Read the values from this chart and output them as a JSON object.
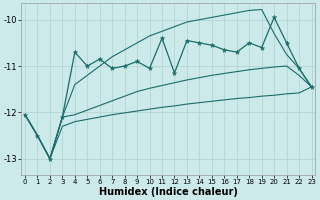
{
  "xlabel": "Humidex (Indice chaleur)",
  "xlim": [
    -0.3,
    23.3
  ],
  "ylim": [
    -13.35,
    -9.65
  ],
  "yticks": [
    -13,
    -12,
    -11,
    -10
  ],
  "xticks": [
    0,
    1,
    2,
    3,
    4,
    5,
    6,
    7,
    8,
    9,
    10,
    11,
    12,
    13,
    14,
    15,
    16,
    17,
    18,
    19,
    20,
    21,
    22,
    23
  ],
  "bg_color": "#cceaea",
  "line_color": "#1a6b6b",
  "grid_color": "#b8d8d8",
  "zigzag_y": [
    -12.05,
    -12.5,
    -13.0,
    -12.1,
    -10.7,
    -11.0,
    -10.85,
    -11.05,
    -11.0,
    -10.9,
    -11.05,
    -10.4,
    -11.15,
    -10.45,
    -10.5,
    -10.55,
    -10.65,
    -10.7,
    -10.5,
    -10.6,
    -9.95,
    -10.5,
    -11.05,
    -11.45
  ],
  "upper_env_y": [
    -12.05,
    -12.5,
    -13.0,
    -12.1,
    -11.4,
    -11.2,
    -11.0,
    -10.8,
    -10.65,
    -10.5,
    -10.35,
    -10.25,
    -10.15,
    -10.05,
    -10.0,
    -9.95,
    -9.9,
    -9.85,
    -9.8,
    -9.78,
    -10.3,
    -10.75,
    -11.05,
    -11.45
  ],
  "lower_env_y": [
    -12.05,
    -12.5,
    -13.0,
    -12.1,
    -12.05,
    -11.95,
    -11.85,
    -11.75,
    -11.65,
    -11.55,
    -11.48,
    -11.42,
    -11.36,
    -11.3,
    -11.25,
    -11.2,
    -11.16,
    -11.12,
    -11.08,
    -11.05,
    -11.02,
    -11.0,
    -11.2,
    -11.45
  ],
  "smooth_y": [
    -12.05,
    -12.5,
    -13.0,
    -12.3,
    -12.2,
    -12.15,
    -12.1,
    -12.05,
    -12.01,
    -11.97,
    -11.93,
    -11.89,
    -11.86,
    -11.82,
    -11.79,
    -11.76,
    -11.73,
    -11.7,
    -11.68,
    -11.65,
    -11.63,
    -11.6,
    -11.58,
    -11.45
  ]
}
